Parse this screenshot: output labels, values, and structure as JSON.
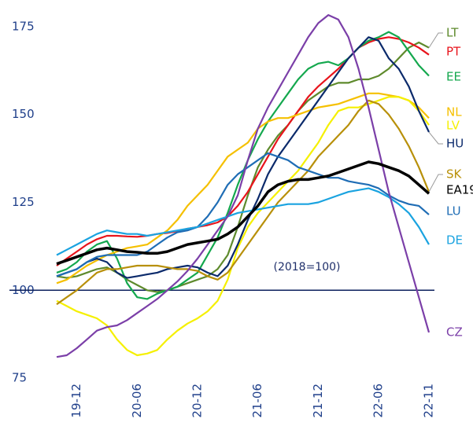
{
  "chart_data": {
    "type": "line",
    "annotation": "(2018=100)",
    "categories": [
      null,
      null,
      "19-12",
      null,
      null,
      null,
      null,
      null,
      "20-06",
      null,
      null,
      null,
      null,
      null,
      "20-12",
      null,
      null,
      null,
      null,
      null,
      "21-06",
      null,
      null,
      null,
      null,
      null,
      "21-12",
      null,
      null,
      null,
      null,
      null,
      "22-06",
      null,
      null,
      null,
      null,
      "22-11"
    ],
    "ylim": [
      73,
      179
    ],
    "yticks": [
      75,
      100,
      125,
      150,
      175
    ],
    "reference_line": 100,
    "series": [
      {
        "name": "LT",
        "color": "#5e8a2c",
        "values": [
          104,
          103.5,
          104,
          105,
          106,
          106.5,
          105,
          103,
          101.5,
          100,
          99.5,
          100,
          101,
          102,
          103,
          104,
          106,
          110,
          118,
          127,
          135,
          140,
          144,
          147,
          151,
          154,
          156,
          158,
          159,
          159,
          160,
          160,
          161,
          163,
          166,
          169,
          170.5,
          169
        ]
      },
      {
        "name": "PT",
        "color": "#e8141c",
        "values": [
          107,
          109,
          111,
          113,
          114.5,
          115.5,
          115.5,
          115.3,
          115.2,
          115.5,
          116,
          116.3,
          116.8,
          117.5,
          118,
          118.5,
          119.3,
          121,
          124,
          128,
          133,
          138,
          143,
          147,
          151,
          155,
          158,
          160.5,
          163,
          166,
          169,
          170.5,
          171.5,
          172,
          171.5,
          170.5,
          169,
          167
        ]
      },
      {
        "name": "EE",
        "color": "#14a84e",
        "values": [
          105,
          106,
          108,
          111,
          113,
          114,
          109,
          102,
          98,
          97.5,
          99,
          100,
          101,
          103,
          105,
          110,
          115,
          122,
          130,
          137,
          143,
          148,
          152,
          156,
          160,
          163,
          164.5,
          165,
          164,
          166,
          169,
          171,
          172,
          173.5,
          172,
          168,
          164,
          161
        ]
      },
      {
        "name": "NL",
        "color": "#f5c000",
        "values": [
          102,
          103,
          105,
          107,
          108.5,
          110,
          111,
          112,
          112.5,
          113,
          115,
          117,
          120,
          124,
          127,
          130,
          134,
          138,
          140,
          142,
          146,
          148,
          149,
          149,
          150,
          151,
          152,
          152.5,
          153,
          154,
          155,
          156,
          156,
          155.5,
          155,
          154,
          152,
          149
        ]
      },
      {
        "name": "LV",
        "color": "#f5f000",
        "values": [
          97,
          95.5,
          94,
          93,
          92,
          90,
          86,
          83,
          81.5,
          82,
          83,
          86,
          88.5,
          90.5,
          92,
          94,
          97,
          103,
          112,
          118,
          122,
          125,
          128,
          131,
          134,
          138,
          142,
          147,
          151,
          152,
          152,
          153,
          154,
          155,
          155,
          154,
          151,
          147
        ]
      },
      {
        "name": "HU",
        "color": "#0b2a6b",
        "values": [
          104,
          105,
          106,
          108,
          109,
          108,
          105,
          103.5,
          104,
          104.5,
          105,
          106,
          106.5,
          107,
          106.5,
          105,
          104,
          107,
          113,
          120,
          126,
          133,
          138,
          142,
          146,
          150,
          154,
          158,
          162,
          166,
          169,
          172,
          171,
          166,
          163,
          158,
          151,
          145
        ]
      },
      {
        "name": "SK",
        "color": "#b8900a",
        "values": [
          96,
          98,
          100,
          102.5,
          105,
          106,
          106,
          106.5,
          107,
          107,
          107,
          106.5,
          106,
          106,
          105.5,
          104,
          103,
          105,
          109,
          113,
          117,
          121,
          125,
          128,
          131,
          134,
          138,
          141,
          144,
          147,
          151,
          154,
          153,
          150,
          146,
          141,
          135,
          128
        ]
      },
      {
        "name": "LU",
        "color": "#1f6db5",
        "values": [
          104,
          105,
          106,
          108,
          109.5,
          110,
          110,
          110,
          110,
          111,
          113,
          115,
          116.5,
          117,
          118,
          121,
          125,
          130,
          133,
          135,
          137,
          139,
          138,
          137,
          135,
          134,
          133,
          132,
          132,
          131,
          130.5,
          130,
          129,
          127,
          125.5,
          124.5,
          124,
          121.5
        ]
      },
      {
        "name": "DE",
        "color": "#1aa3e0",
        "values": [
          110,
          111.5,
          113,
          114.5,
          116,
          117,
          116.5,
          116,
          116,
          115.5,
          116,
          116.5,
          117,
          117.5,
          118,
          119,
          120,
          121,
          122,
          122.5,
          123,
          123.5,
          124,
          124.5,
          124.5,
          124.5,
          125,
          126,
          127,
          128,
          128.5,
          129,
          128,
          126.5,
          124.5,
          122,
          118,
          113
        ]
      },
      {
        "name": "CZ",
        "color": "#7b3fa8",
        "values": [
          81,
          81.5,
          83.5,
          86,
          88.5,
          89.5,
          90,
          91.5,
          93.5,
          95.5,
          97.5,
          100,
          102.5,
          105.5,
          109,
          113,
          117,
          121,
          127,
          137,
          146,
          152,
          157,
          162,
          167,
          172,
          176,
          178.3,
          177,
          172,
          163,
          152,
          140,
          128,
          118,
          108,
          98,
          88
        ]
      },
      {
        "name": "EA19",
        "color": "#000000",
        "line_width": 3.5,
        "values": [
          107.5,
          108.5,
          109.5,
          110.5,
          111.5,
          112,
          111.5,
          111,
          110.8,
          110.5,
          110.5,
          111,
          112,
          113,
          113.5,
          114,
          114.5,
          116,
          118,
          121,
          124,
          128,
          130,
          131,
          131.5,
          131.5,
          132,
          132.5,
          133.5,
          134.5,
          135.5,
          136.5,
          136,
          135,
          134,
          132.5,
          130,
          127.5
        ]
      }
    ]
  }
}
